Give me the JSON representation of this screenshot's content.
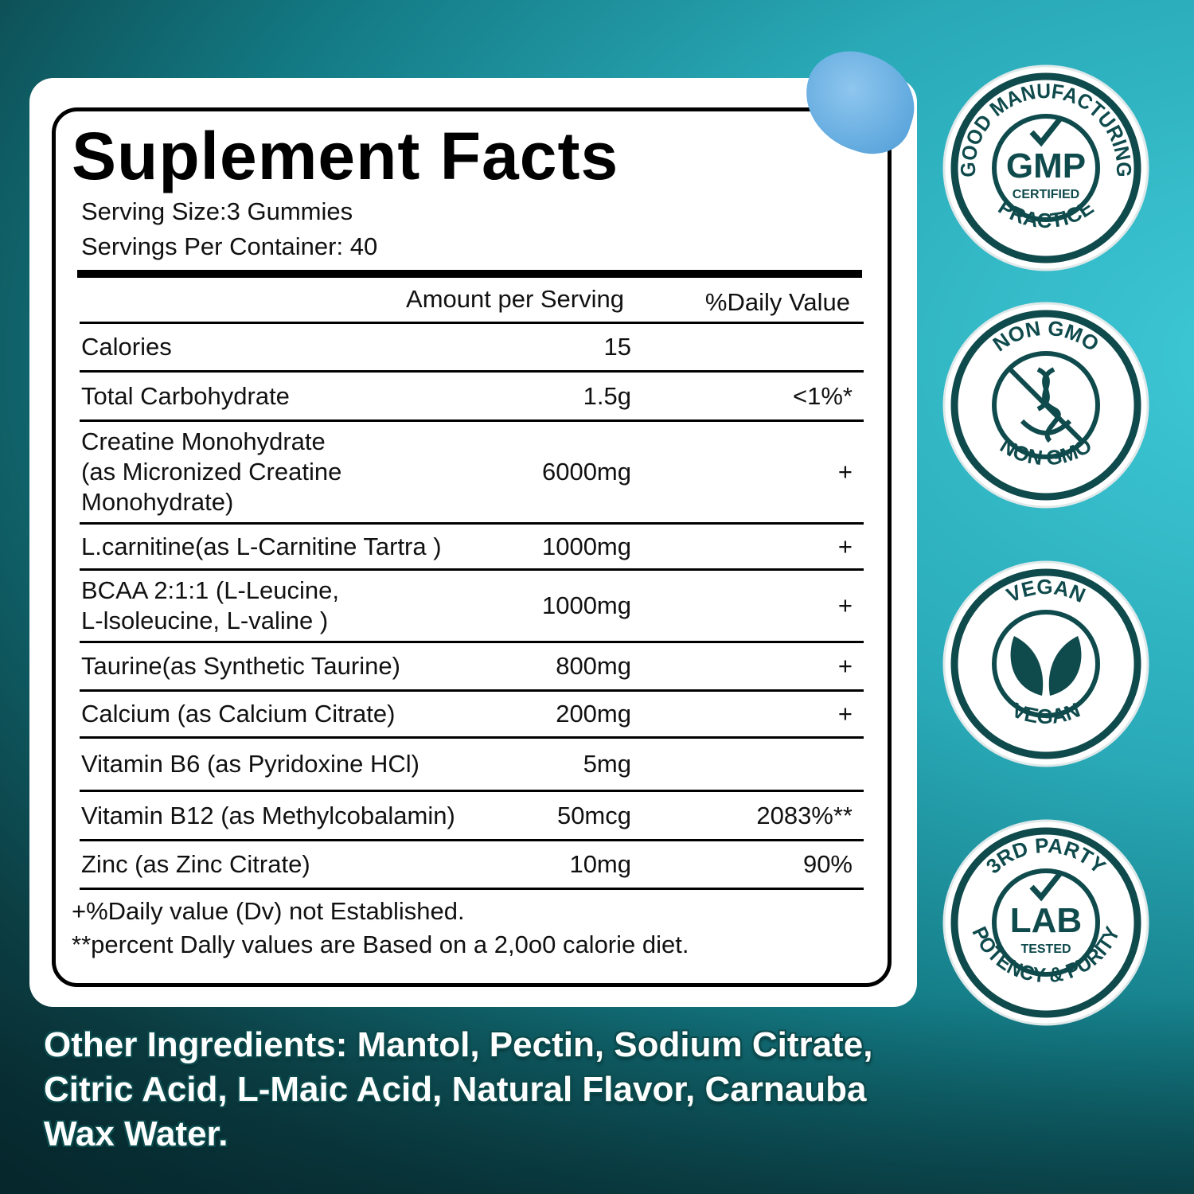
{
  "panel": {
    "title": "Suplement Facts",
    "serving_size": "Serving Size:3 Gummies",
    "servings_per_container": "Servings Per Container: 40",
    "col_amount": "Amount per Serving",
    "col_dv": "%Daily Value",
    "rows": [
      {
        "name": "Calories",
        "amount": "15",
        "dv": ""
      },
      {
        "name": "Total Carbohydrate",
        "amount": "1.5g",
        "dv": "<1%*"
      },
      {
        "name": "Creatine Monohydrate\n(as Micronized Creatine\nMonohydrate)",
        "amount": "6000mg",
        "dv": "+"
      },
      {
        "name": "L.carnitine(as L-Carnitine Tartra )",
        "amount": "1000mg",
        "dv": "+"
      },
      {
        "name": "BCAA 2:1:1 (L-Leucine,\nL-lsoleucine, L-valine )",
        "amount": "1000mg",
        "dv": "+"
      },
      {
        "name": "Taurine(as Synthetic Taurine)",
        "amount": "800mg",
        "dv": "+"
      },
      {
        "name": "Calcium (as Calcium Citrate)",
        "amount": "200mg",
        "dv": "+"
      },
      {
        "name": "Vitamin B6 (as Pyridoxine HCl)",
        "amount": "5mg",
        "dv": ""
      },
      {
        "name": "Vitamin B12 (as Methylcobalamin)",
        "amount": "50mcg",
        "dv": "2083%**"
      },
      {
        "name": "Zinc (as Zinc Citrate)",
        "amount": "10mg",
        "dv": "90%"
      }
    ],
    "footnote1": "+%Daily value (Dv) not Established.",
    "footnote2": "**percent Dally values are Based on a 2,0o0 calorie diet."
  },
  "other_ingredients": "Other Ingredients: Mantol, Pectin, Sodium Citrate, Citric Acid, L-Maic Acid, Natural Flavor, Carnauba Wax Water.",
  "badges": [
    {
      "top": "GOOD MANUFACTURING",
      "center": "GMP",
      "sub": "CERTIFIED",
      "bottom": "PRACTICE",
      "icon": "check-icon"
    },
    {
      "top": "NON GMO",
      "center": "",
      "sub": "",
      "bottom": "NON GMO",
      "icon": "dna-crossed-icon"
    },
    {
      "top": "VEGAN",
      "center": "",
      "sub": "",
      "bottom": "VEGAN",
      "icon": "leaves-icon"
    },
    {
      "top": "3RD PARTY",
      "center": "LAB",
      "sub": "TESTED",
      "bottom": "POTENCY & PURITY",
      "icon": "check-icon"
    }
  ],
  "colors": {
    "badge": "#0f4a4c",
    "background": "#2aaab8"
  }
}
